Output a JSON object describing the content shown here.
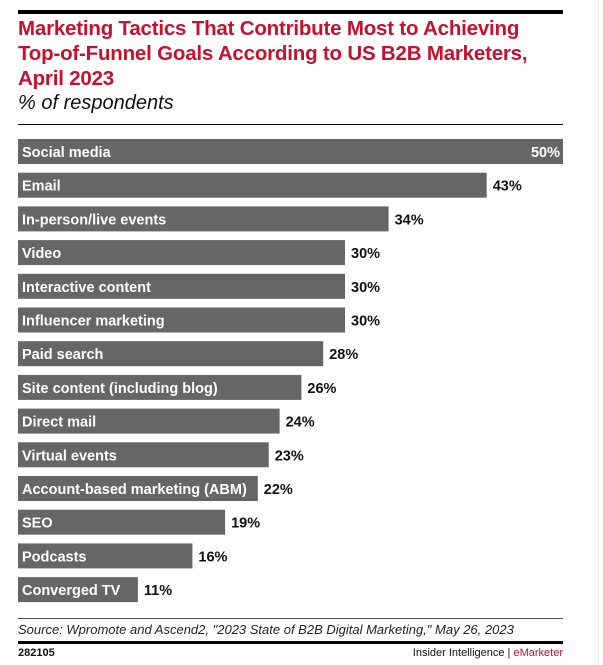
{
  "chart_data": {
    "type": "bar",
    "orientation": "horizontal",
    "title": "Marketing Tactics That Contribute Most to Achieving Top-of-Funnel Goals According to US B2B Marketers, April 2023",
    "subtitle": "% of respondents",
    "categories": [
      "Social media",
      "Email",
      "In-person/live events",
      "Video",
      "Interactive content",
      "Influencer marketing",
      "Paid search",
      "Site content (including blog)",
      "Direct mail",
      "Virtual events",
      "Account-based marketing (ABM)",
      "SEO",
      "Podcasts",
      "Converged TV"
    ],
    "values": [
      50,
      43,
      34,
      30,
      30,
      30,
      28,
      26,
      24,
      23,
      22,
      19,
      16,
      11
    ],
    "value_suffix": "%",
    "xlim": [
      0,
      50
    ],
    "bar_color": "#666666",
    "grid": false
  },
  "footer": {
    "source": "Source: Wpromote and Ascend2, \"2023 State of B2B Digital Marketing,\" May 26, 2023",
    "chart_id": "282105",
    "brand_left": "Insider Intelligence | ",
    "brand_right": "eMarketer"
  },
  "colors": {
    "title": "#c8102e",
    "bar": "#666666"
  }
}
